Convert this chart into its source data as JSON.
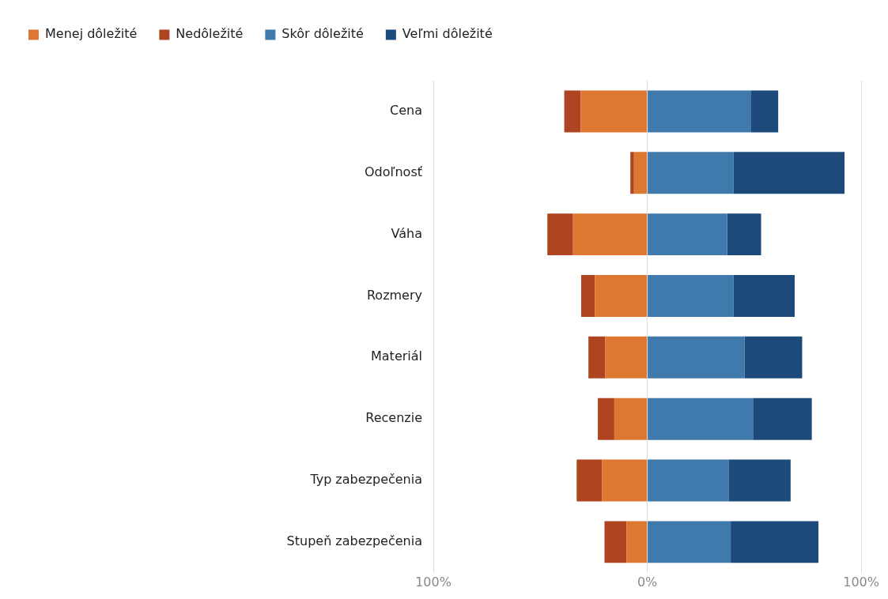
{
  "chart_data": {
    "type": "bar",
    "orientation": "horizontal",
    "stacked": true,
    "categories": [
      "Cena",
      "Odoľnosť",
      "Váha",
      "Rozmery",
      "Materiál",
      "Recenzie",
      "Typ zabezpečenia",
      "Stupeň zabezpečenia"
    ],
    "series": [
      {
        "name": "Menej dôležité",
        "color": "#dd7731",
        "values": [
          -31.1,
          -6.2,
          -34.7,
          -24.5,
          -19.6,
          -15.4,
          -21.1,
          -9.7
        ]
      },
      {
        "name": "Nedôležité",
        "color": "#ae4520",
        "values": [
          -7.7,
          -1.7,
          -12.0,
          -6.4,
          -7.9,
          -7.7,
          -11.9,
          -10.3
        ]
      },
      {
        "name": "Skôr dôležité",
        "color": "#4079ab",
        "values": [
          48.3,
          40.4,
          37.4,
          40.4,
          45.4,
          49.4,
          38.2,
          39.0
        ]
      },
      {
        "name": "Veľmi dôležité",
        "color": "#1d4a7b",
        "values": [
          12.9,
          51.8,
          15.8,
          28.5,
          27.0,
          27.5,
          28.8,
          41.0
        ]
      }
    ],
    "xlim": [
      -100,
      100
    ],
    "xticks": [
      {
        "value": -100,
        "label": "100%"
      },
      {
        "value": 0,
        "label": "0%"
      },
      {
        "value": 100,
        "label": "100%"
      }
    ],
    "grid": "x",
    "legend": "top left"
  }
}
